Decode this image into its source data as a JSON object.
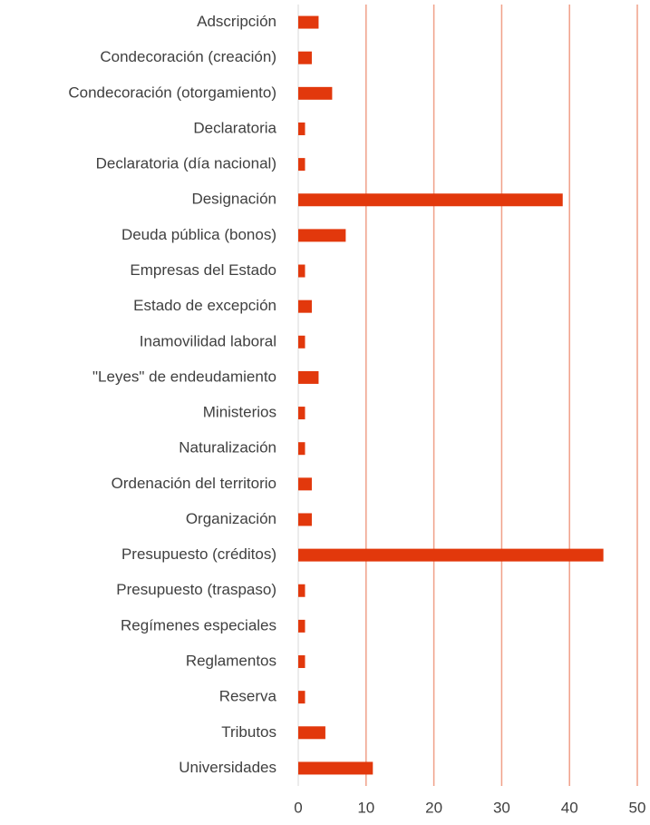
{
  "chart_data": {
    "type": "bar",
    "orientation": "horizontal",
    "categories": [
      "Adscripción",
      "Condecoración (creación)",
      "Condecoración (otorgamiento)",
      "Declaratoria",
      "Declaratoria (día nacional)",
      "Designación",
      "Deuda pública (bonos)",
      "Empresas del Estado",
      "Estado de excepción",
      "Inamovilidad laboral",
      "\"Leyes\" de endeudamiento",
      "Ministerios",
      "Naturalización",
      "Ordenación del territorio",
      "Organización",
      "Presupuesto (créditos)",
      "Presupuesto (traspaso)",
      "Regímenes especiales",
      "Reglamentos",
      "Reserva",
      "Tributos",
      "Universidades"
    ],
    "values": [
      3,
      2,
      5,
      1,
      1,
      39,
      7,
      1,
      2,
      1,
      3,
      1,
      1,
      2,
      2,
      45,
      1,
      1,
      1,
      1,
      4,
      11
    ],
    "color": "#e2380c",
    "grid_color": "#f0a088",
    "xlim": [
      0,
      50
    ],
    "xticks": [
      0,
      10,
      20,
      30,
      40,
      50
    ],
    "grid": true
  }
}
